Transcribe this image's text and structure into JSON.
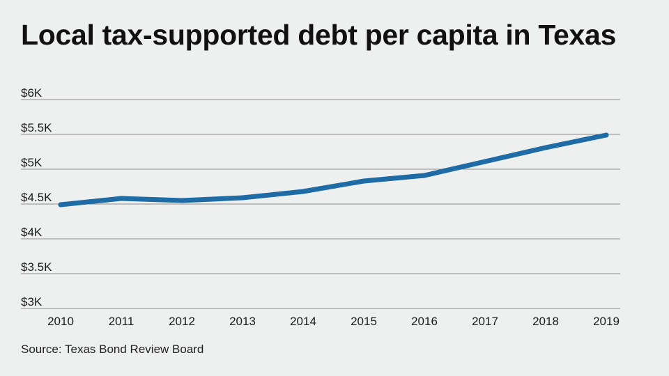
{
  "title": "Local tax-supported debt per capita in Texas",
  "source": "Source: Texas Bond Review Board",
  "colors": {
    "line": "#1e6ba6",
    "grid": "#8a8a8a",
    "background": "#eef0ef"
  },
  "chart_data": {
    "type": "line",
    "title": "Local tax-supported debt per capita in Texas",
    "xlabel": "",
    "ylabel": "",
    "categories": [
      "2010",
      "2011",
      "2012",
      "2013",
      "2014",
      "2015",
      "2016",
      "2017",
      "2018",
      "2019"
    ],
    "series": [
      {
        "name": "Local tax-supported debt per capita",
        "values": [
          4490,
          4580,
          4550,
          4590,
          4680,
          4830,
          4910,
          5110,
          5310,
          5490
        ]
      }
    ],
    "ylim": [
      3000,
      6000
    ],
    "yticks": [
      {
        "value": 6000,
        "label": "$6K"
      },
      {
        "value": 5500,
        "label": "$5.5K"
      },
      {
        "value": 5000,
        "label": "$5K"
      },
      {
        "value": 4500,
        "label": "$4.5K"
      },
      {
        "value": 4000,
        "label": "$4K"
      },
      {
        "value": 3500,
        "label": "$3.5K"
      },
      {
        "value": 3000,
        "label": "$3K"
      }
    ],
    "grid": true,
    "legend": "none"
  }
}
